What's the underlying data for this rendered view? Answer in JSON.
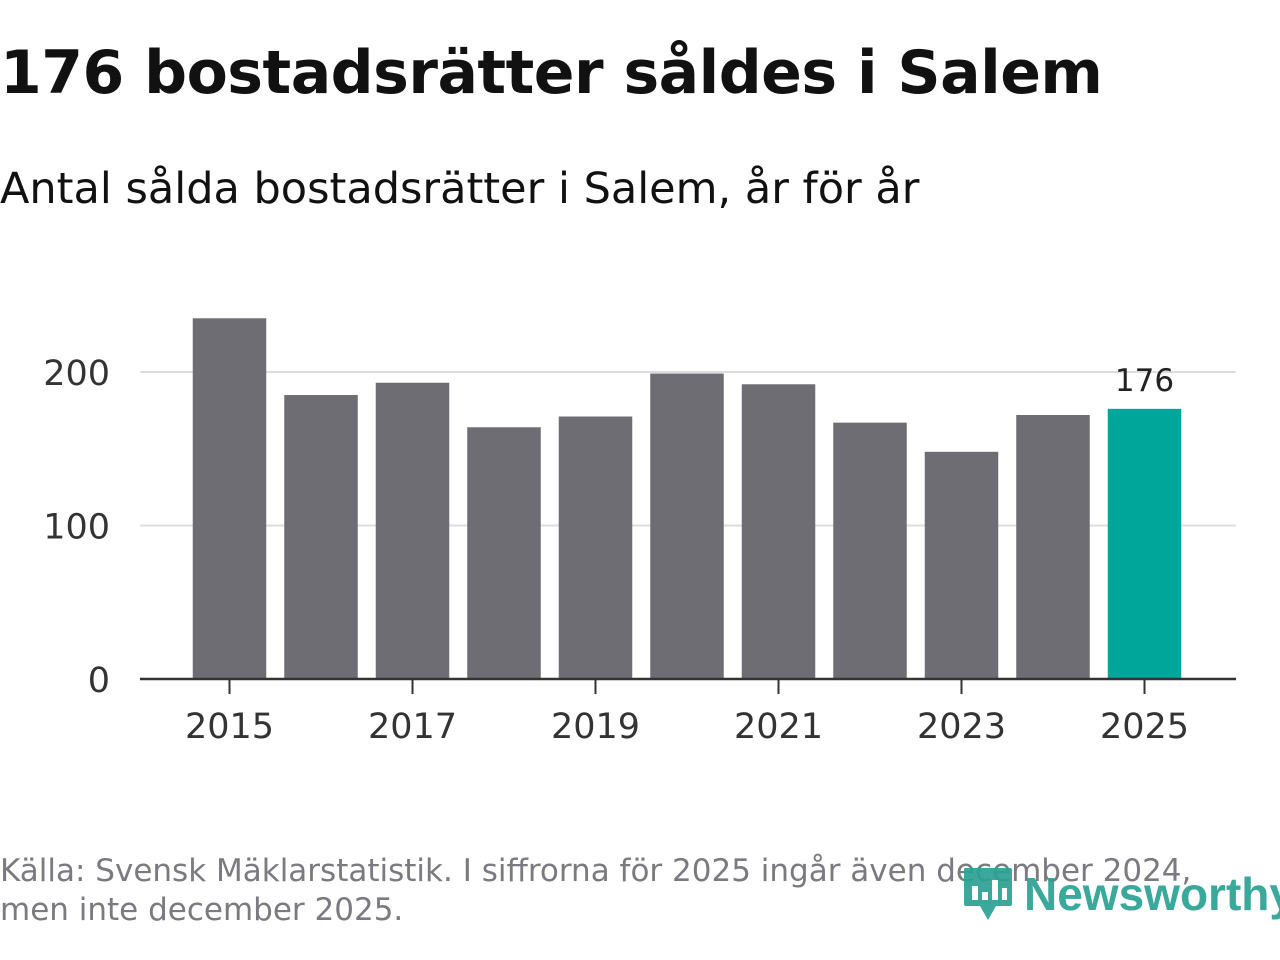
{
  "header": {
    "title": "176 bostadsrätter såldes i Salem",
    "subtitle": "Antal sålda bostadsrätter i Salem, år för år"
  },
  "footer": {
    "source_line1": "Källa: Svensk Mäklarstatistik. I siffrorna för 2025 ingår även december 2024,",
    "source_line2": "men inte december 2025.",
    "logo_text": "Newsworthy"
  },
  "colors": {
    "bar": "#6e6d74",
    "highlight": "#00a69a",
    "grid": "#dddddd",
    "axis": "#333333",
    "logo": "#2aa193"
  },
  "chart_data": {
    "type": "bar",
    "title": "176 bostadsrätter såldes i Salem",
    "subtitle": "Antal sålda bostadsrätter i Salem, år för år",
    "xlabel": "",
    "ylabel": "",
    "categories": [
      "2015",
      "2016",
      "2017",
      "2018",
      "2019",
      "2020",
      "2021",
      "2022",
      "2023",
      "2024",
      "2025"
    ],
    "values": [
      235,
      185,
      193,
      164,
      171,
      199,
      192,
      167,
      148,
      172,
      176
    ],
    "highlight_index": 10,
    "highlight_label": "176",
    "ylim": [
      0,
      245
    ],
    "yticks": [
      0,
      100,
      200
    ],
    "xtick_labels": [
      "2015",
      "2017",
      "2019",
      "2021",
      "2023",
      "2025"
    ],
    "grid": true
  }
}
